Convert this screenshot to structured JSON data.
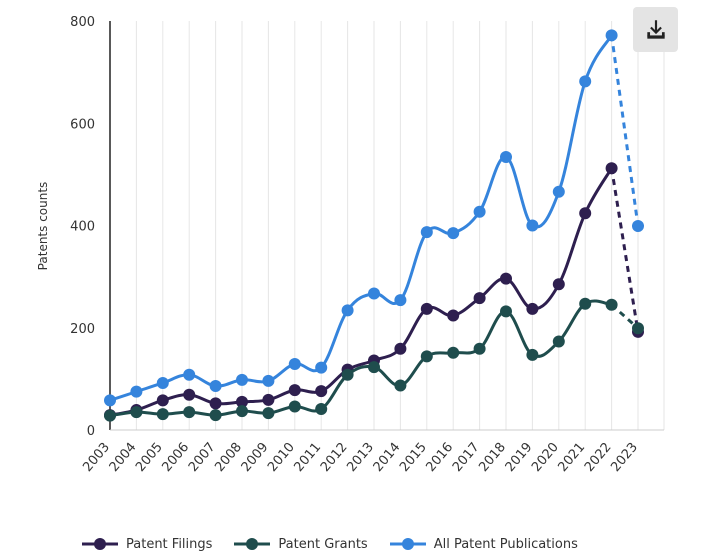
{
  "chart_data": {
    "type": "line",
    "title": "",
    "xlabel": "",
    "ylabel": "Patents counts",
    "ylim": [
      0,
      800
    ],
    "yticks": [
      0,
      200,
      400,
      600,
      800
    ],
    "grid": true,
    "legend_position": "bottom",
    "categories": [
      "2003",
      "2004",
      "2005",
      "2006",
      "2007",
      "2008",
      "2009",
      "2010",
      "2011",
      "2012",
      "2013",
      "2014",
      "2015",
      "2016",
      "2017",
      "2018",
      "2019",
      "2020",
      "2021",
      "2022",
      "2023"
    ],
    "series": [
      {
        "name": "Patent Filings",
        "color": "#2e1f4f",
        "values": [
          29,
          39,
          58,
          69,
          52,
          55,
          59,
          78,
          76,
          118,
          136,
          159,
          237,
          224,
          258,
          296,
          237,
          285,
          424,
          512,
          192
        ],
        "dashed_last_segment": true
      },
      {
        "name": "Patent Grants",
        "color": "#1f4d4d",
        "values": [
          28,
          35,
          31,
          35,
          29,
          37,
          33,
          46,
          41,
          108,
          123,
          87,
          144,
          151,
          159,
          232,
          147,
          173,
          247,
          245,
          199
        ],
        "dashed_last_segment": true
      },
      {
        "name": "All Patent Publications",
        "color": "#3584dc",
        "values": [
          58,
          75,
          92,
          108,
          86,
          98,
          96,
          129,
          122,
          234,
          267,
          254,
          387,
          385,
          427,
          534,
          400,
          466,
          682,
          772,
          399
        ],
        "dashed_last_segment": true
      }
    ]
  },
  "toolbar": {
    "download_icon": "download-icon"
  }
}
